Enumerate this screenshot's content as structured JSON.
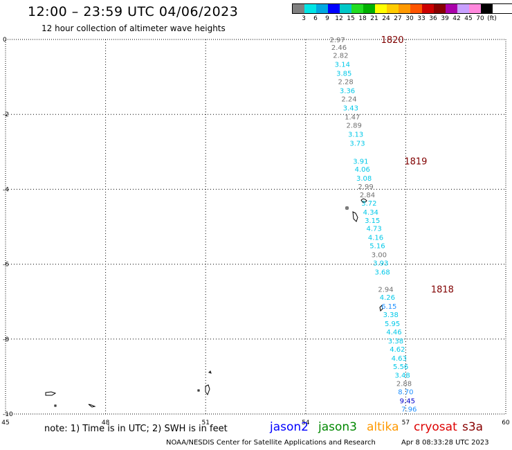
{
  "header": {
    "title": "12:00 – 23:59 UTC 04/06/2023",
    "subtitle": "12 hour collection of altimeter wave heights"
  },
  "color_scale": {
    "colors": [
      "#808080",
      "#00e5e5",
      "#00a8e0",
      "#0000ff",
      "#00c8c8",
      "#22dd22",
      "#00b000",
      "#ffff00",
      "#ffcc00",
      "#ff9900",
      "#ff5500",
      "#cc0000",
      "#880000",
      "#aa00aa",
      "#c8a0ff",
      "#ff88dd",
      "#000000"
    ],
    "labels": [
      "3",
      "6",
      "9",
      "12",
      "15",
      "18",
      "21",
      "24",
      "27",
      "30",
      "33",
      "36",
      "39",
      "42",
      "45",
      "70",
      "(ft)"
    ]
  },
  "map": {
    "x_ticks": [
      "45",
      "48",
      "51",
      "54",
      "57",
      "60"
    ],
    "y_ticks": [
      "0",
      "-2",
      "-4",
      "-6",
      "-8",
      "-10"
    ],
    "lon_range": [
      45,
      60
    ],
    "lat_range": [
      -10,
      0
    ]
  },
  "track": [
    {
      "lon": 54.95,
      "lat": 0.0,
      "swh": "2.97",
      "sat": "gray"
    },
    {
      "lon": 55.0,
      "lat": -0.2,
      "swh": "2.46",
      "sat": "gray"
    },
    {
      "lon": 55.05,
      "lat": -0.42,
      "swh": "2.82",
      "sat": "gray"
    },
    {
      "lon": 55.1,
      "lat": -0.66,
      "swh": "3.14",
      "sat": "cyan"
    },
    {
      "lon": 55.15,
      "lat": -0.9,
      "swh": "3.85",
      "sat": "cyan"
    },
    {
      "lon": 55.2,
      "lat": -1.12,
      "swh": "2.28",
      "sat": "gray"
    },
    {
      "lon": 55.25,
      "lat": -1.36,
      "swh": "3.36",
      "sat": "cyan"
    },
    {
      "lon": 55.3,
      "lat": -1.58,
      "swh": "2.24",
      "sat": "gray"
    },
    {
      "lon": 55.35,
      "lat": -1.82,
      "swh": "3.43",
      "sat": "cyan"
    },
    {
      "lon": 55.4,
      "lat": -2.06,
      "swh": "1.47",
      "sat": "gray"
    },
    {
      "lon": 55.45,
      "lat": -2.28,
      "swh": "2.89",
      "sat": "gray"
    },
    {
      "lon": 55.5,
      "lat": -2.52,
      "swh": "3.13",
      "sat": "cyan"
    },
    {
      "lon": 55.55,
      "lat": -2.76,
      "swh": "3.73",
      "sat": "cyan"
    },
    {
      "lon": 55.65,
      "lat": -3.24,
      "swh": "3.91",
      "sat": "cyan"
    },
    {
      "lon": 55.7,
      "lat": -3.46,
      "swh": "4.06",
      "sat": "cyan"
    },
    {
      "lon": 55.75,
      "lat": -3.7,
      "swh": "3.08",
      "sat": "cyan"
    },
    {
      "lon": 55.8,
      "lat": -3.92,
      "swh": "2.99",
      "sat": "gray"
    },
    {
      "lon": 55.85,
      "lat": -4.14,
      "swh": "2.84",
      "sat": "gray"
    },
    {
      "lon": 55.9,
      "lat": -4.36,
      "swh": "3.72",
      "sat": "cyan"
    },
    {
      "lon": 55.95,
      "lat": -4.6,
      "swh": "4.34",
      "sat": "cyan"
    },
    {
      "lon": 56.0,
      "lat": -4.82,
      "swh": "3.15",
      "sat": "cyan"
    },
    {
      "lon": 56.05,
      "lat": -5.04,
      "swh": "4.73",
      "sat": "cyan"
    },
    {
      "lon": 56.1,
      "lat": -5.28,
      "swh": "4.16",
      "sat": "cyan"
    },
    {
      "lon": 56.15,
      "lat": -5.5,
      "swh": "5.16",
      "sat": "cyan"
    },
    {
      "lon": 56.2,
      "lat": -5.74,
      "swh": "3.00",
      "sat": "gray"
    },
    {
      "lon": 56.25,
      "lat": -5.96,
      "swh": "3.93",
      "sat": "cyan"
    },
    {
      "lon": 56.3,
      "lat": -6.2,
      "swh": "3.68",
      "sat": "cyan"
    },
    {
      "lon": 56.4,
      "lat": -6.66,
      "swh": "2.94",
      "sat": "gray"
    },
    {
      "lon": 56.45,
      "lat": -6.88,
      "swh": "4.26",
      "sat": "cyan"
    },
    {
      "lon": 56.5,
      "lat": -7.12,
      "swh": "6.15",
      "sat": "blue"
    },
    {
      "lon": 56.55,
      "lat": -7.34,
      "swh": "3.38",
      "sat": "cyan"
    },
    {
      "lon": 56.6,
      "lat": -7.58,
      "swh": "5.95",
      "sat": "cyan"
    },
    {
      "lon": 56.65,
      "lat": -7.8,
      "swh": "4.46",
      "sat": "cyan"
    },
    {
      "lon": 56.7,
      "lat": -8.04,
      "swh": "3.38",
      "sat": "cyan"
    },
    {
      "lon": 56.75,
      "lat": -8.26,
      "swh": "4.62",
      "sat": "cyan"
    },
    {
      "lon": 56.8,
      "lat": -8.5,
      "swh": "4.63",
      "sat": "cyan"
    },
    {
      "lon": 56.85,
      "lat": -8.72,
      "swh": "5.56",
      "sat": "cyan"
    },
    {
      "lon": 56.9,
      "lat": -8.96,
      "swh": "3.48",
      "sat": "cyan"
    },
    {
      "lon": 56.95,
      "lat": -9.18,
      "swh": "2.88",
      "sat": "gray"
    },
    {
      "lon": 57.0,
      "lat": -9.4,
      "swh": "8.70",
      "sat": "blue"
    },
    {
      "lon": 57.05,
      "lat": -9.64,
      "swh": "9.45",
      "sat": "navy"
    },
    {
      "lon": 57.1,
      "lat": -9.86,
      "swh": "7.96",
      "sat": "blue"
    }
  ],
  "time_labels": [
    {
      "lon": 56.6,
      "lat": 0.0,
      "text": "1820"
    },
    {
      "lon": 57.3,
      "lat": -3.24,
      "text": "1819"
    },
    {
      "lon": 58.1,
      "lat": -6.66,
      "text": "1818"
    }
  ],
  "sat_colors": {
    "gray": "#707070",
    "cyan": "#00c8e8",
    "blue": "#1e90ff",
    "navy": "#0000cc",
    "label": "#800000"
  },
  "footer": {
    "note": "note:  1) Time is in UTC; 2) SWH is in feet",
    "satellites": [
      {
        "name": "jason2",
        "color": "#0000ff"
      },
      {
        "name": "jason3",
        "color": "#008800"
      },
      {
        "name": "altika",
        "color": "#ff9900"
      },
      {
        "name": "cryosat",
        "color": "#dd0000"
      },
      {
        "name": "s3a",
        "color": "#880000"
      }
    ],
    "credit": "NOAA/NESDIS Center for Satellite Applications and Research",
    "date": "Apr  8 08:33:28 UTC 2023"
  }
}
